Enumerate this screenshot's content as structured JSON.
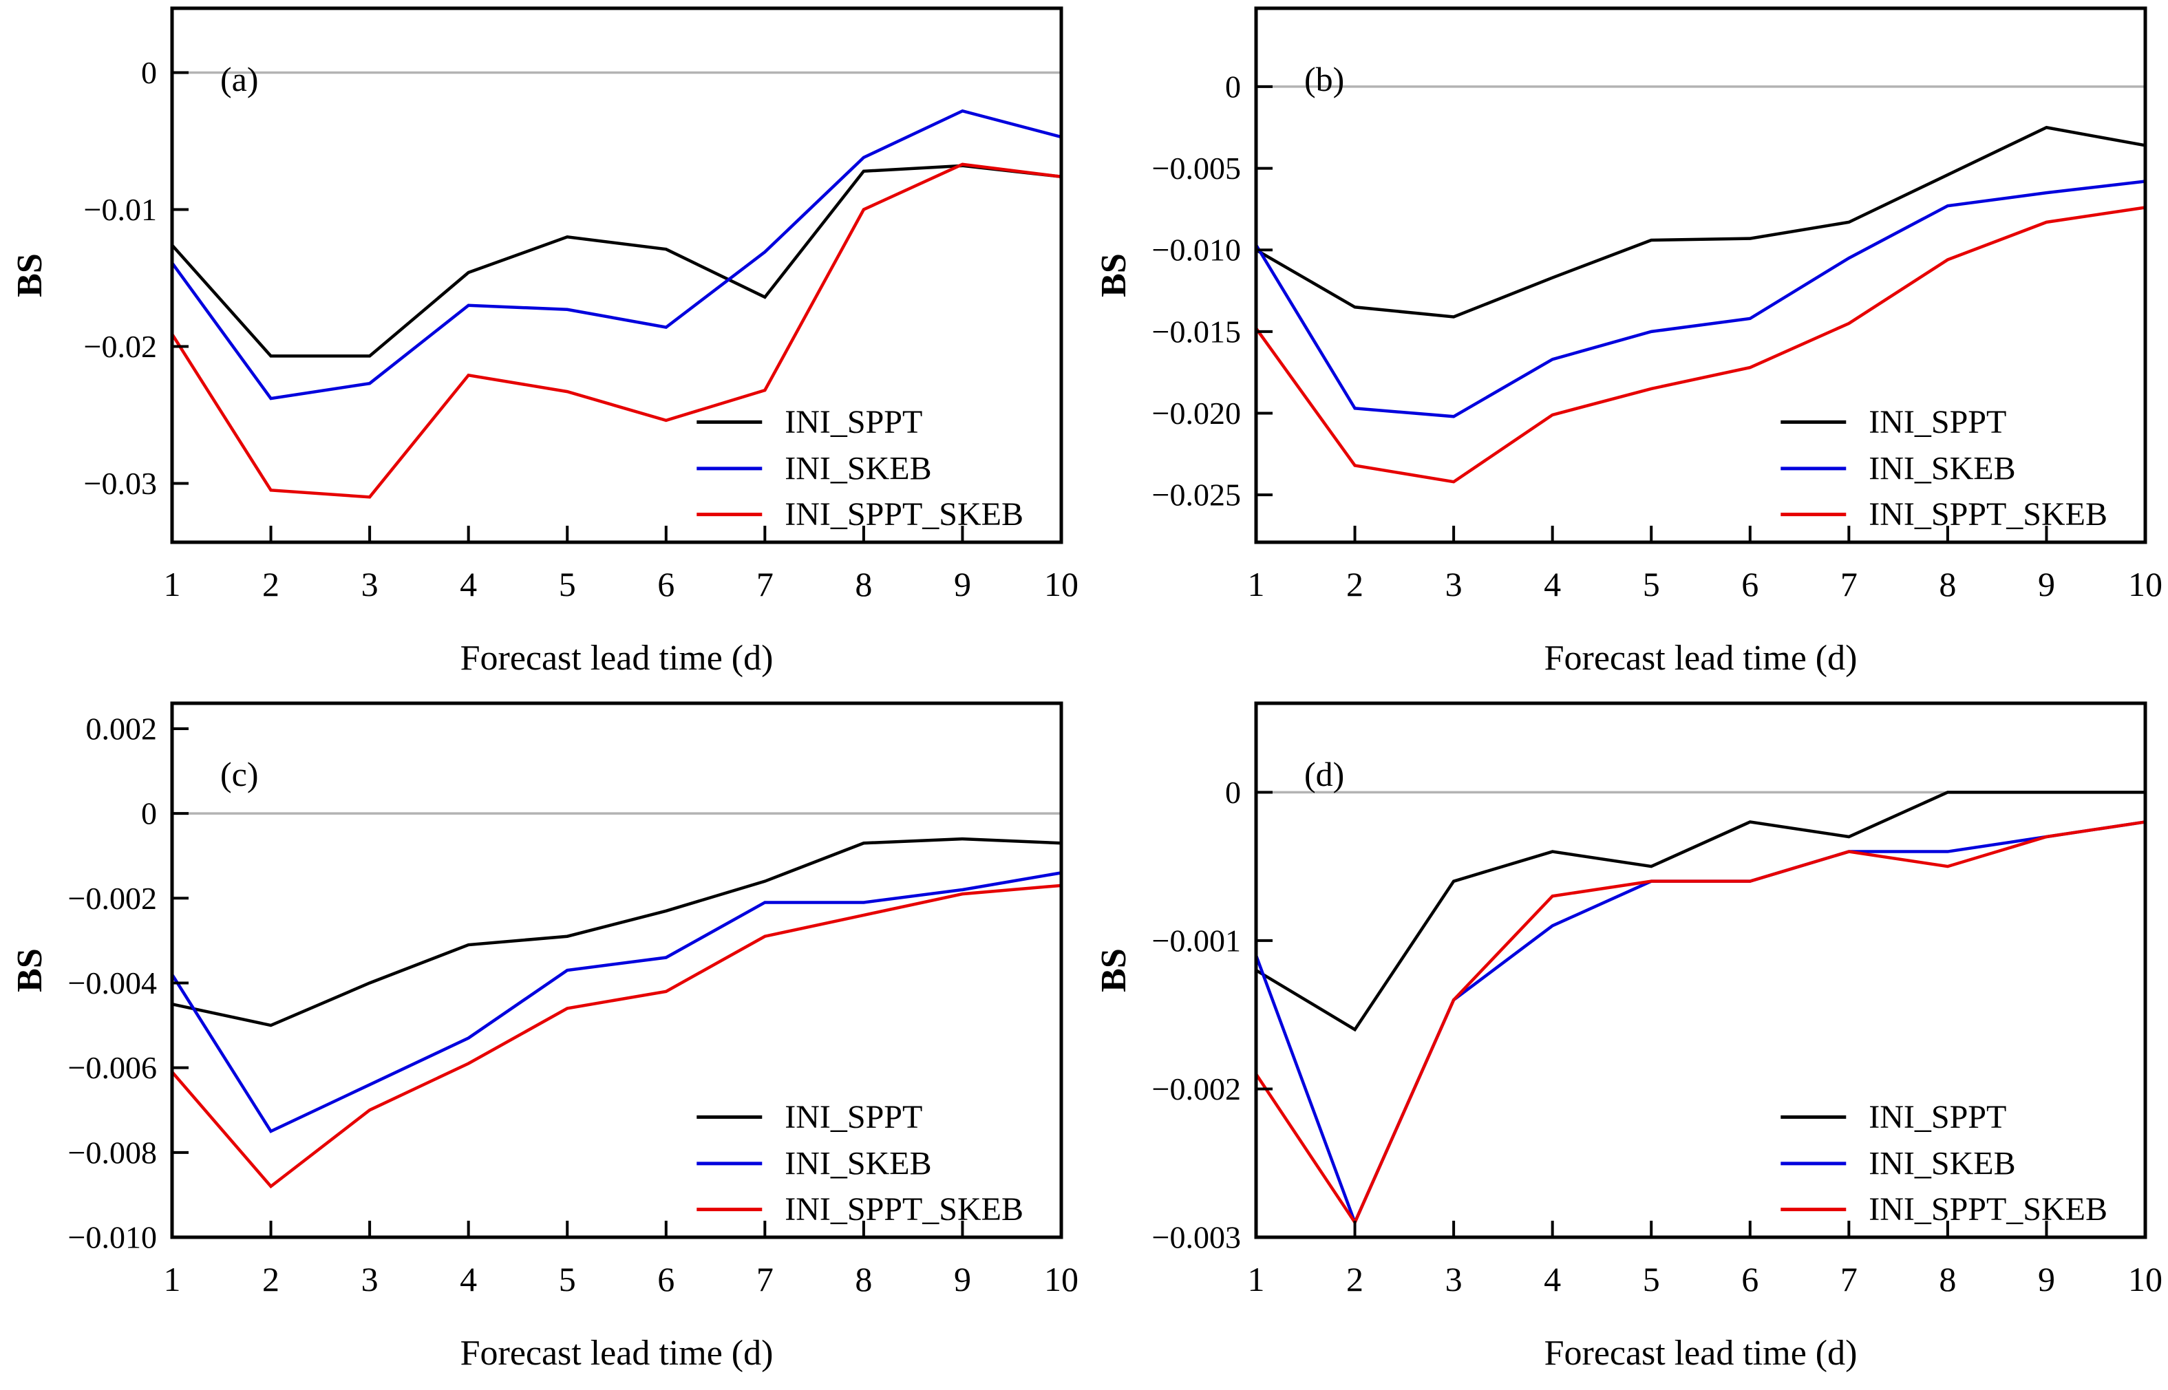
{
  "figure": {
    "ylabel": "BS",
    "xlabel": "Forecast lead time (d)",
    "legend_labels": [
      "INI_SPPT",
      "INI_SKEB",
      "INI_SPPT_SKEB"
    ],
    "series_colors": {
      "INI_SPPT": "#000000",
      "INI_SKEB": "#0000dd",
      "INI_SPPT_SKEB": "#e60000"
    },
    "zero_line_color": "#b3b3b3",
    "axis_color": "#000000",
    "background_color": "#ffffff"
  },
  "chart_data": [
    {
      "type": "line",
      "panel_label": "(a)",
      "title": "",
      "xlabel": "Forecast lead time (d)",
      "ylabel": "BS",
      "x": [
        1,
        2,
        3,
        4,
        5,
        6,
        7,
        8,
        9,
        10
      ],
      "x_tick_labels": [
        "1",
        "2",
        "3",
        "4",
        "5",
        "6",
        "7",
        "8",
        "9",
        "10"
      ],
      "ylim": [
        -0.0343,
        0.0047
      ],
      "grid": "zero-line-only",
      "legend_position": "lower right",
      "yticks": [
        {
          "v": 0,
          "label": "0"
        },
        {
          "v": -0.01,
          "label": "−0.01"
        },
        {
          "v": -0.02,
          "label": "−0.02"
        },
        {
          "v": -0.03,
          "label": "−0.03"
        }
      ],
      "series": [
        {
          "name": "INI_SPPT",
          "color": "#000000",
          "values": [
            -0.0126,
            -0.0207,
            -0.0207,
            -0.0146,
            -0.012,
            -0.0129,
            -0.0164,
            -0.0072,
            -0.0068,
            -0.0076
          ]
        },
        {
          "name": "INI_SKEB",
          "color": "#0000dd",
          "values": [
            -0.0139,
            -0.0238,
            -0.0227,
            -0.017,
            -0.0173,
            -0.0186,
            -0.0131,
            -0.0062,
            -0.0028,
            -0.0047
          ]
        },
        {
          "name": "INI_SPPT_SKEB",
          "color": "#e60000",
          "values": [
            -0.0191,
            -0.0305,
            -0.031,
            -0.0221,
            -0.0233,
            -0.0254,
            -0.0232,
            -0.01,
            -0.0067,
            -0.0076
          ]
        }
      ]
    },
    {
      "type": "line",
      "panel_label": "(b)",
      "title": "",
      "xlabel": "Forecast lead time (d)",
      "ylabel": "BS",
      "x": [
        1,
        2,
        3,
        4,
        5,
        6,
        7,
        8,
        9,
        10
      ],
      "x_tick_labels": [
        "1",
        "2",
        "3",
        "4",
        "5",
        "6",
        "7",
        "8",
        "9",
        "10"
      ],
      "ylim": [
        -0.0279,
        0.0048
      ],
      "grid": "zero-line-only",
      "legend_position": "lower right",
      "yticks": [
        {
          "v": 0,
          "label": "0"
        },
        {
          "v": -0.005,
          "label": "−0.005"
        },
        {
          "v": -0.01,
          "label": "−0.010"
        },
        {
          "v": -0.015,
          "label": "−0.015"
        },
        {
          "v": -0.02,
          "label": "−0.020"
        },
        {
          "v": -0.025,
          "label": "−0.025"
        }
      ],
      "series": [
        {
          "name": "INI_SPPT",
          "color": "#000000",
          "values": [
            -0.01,
            -0.0135,
            -0.0141,
            -0.0117,
            -0.0094,
            -0.0093,
            -0.0083,
            -0.0054,
            -0.0025,
            -0.0036
          ]
        },
        {
          "name": "INI_SKEB",
          "color": "#0000dd",
          "values": [
            -0.0097,
            -0.0197,
            -0.0202,
            -0.0167,
            -0.015,
            -0.0142,
            -0.0105,
            -0.0073,
            -0.0065,
            -0.0058
          ]
        },
        {
          "name": "INI_SPPT_SKEB",
          "color": "#e60000",
          "values": [
            -0.0148,
            -0.0232,
            -0.0242,
            -0.0201,
            -0.0185,
            -0.0172,
            -0.0145,
            -0.0106,
            -0.0083,
            -0.0074
          ]
        }
      ]
    },
    {
      "type": "line",
      "panel_label": "(c)",
      "title": "",
      "xlabel": "Forecast lead time (d)",
      "ylabel": "BS",
      "x": [
        1,
        2,
        3,
        4,
        5,
        6,
        7,
        8,
        9,
        10
      ],
      "x_tick_labels": [
        "1",
        "2",
        "3",
        "4",
        "5",
        "6",
        "7",
        "8",
        "9",
        "10"
      ],
      "ylim": [
        -0.01,
        0.0026
      ],
      "grid": "zero-line-only",
      "legend_position": "lower right",
      "yticks": [
        {
          "v": 0.002,
          "label": "0.002"
        },
        {
          "v": 0,
          "label": "0"
        },
        {
          "v": -0.002,
          "label": "−0.002"
        },
        {
          "v": -0.004,
          "label": "−0.004"
        },
        {
          "v": -0.006,
          "label": "−0.006"
        },
        {
          "v": -0.008,
          "label": "−0.008"
        },
        {
          "v": -0.01,
          "label": "−0.010"
        }
      ],
      "series": [
        {
          "name": "INI_SPPT",
          "color": "#000000",
          "values": [
            -0.0045,
            -0.005,
            -0.004,
            -0.0031,
            -0.0029,
            -0.0023,
            -0.0016,
            -0.0007,
            -0.0006,
            -0.0007
          ]
        },
        {
          "name": "INI_SKEB",
          "color": "#0000dd",
          "values": [
            -0.0038,
            -0.0075,
            -0.0064,
            -0.0053,
            -0.0037,
            -0.0034,
            -0.0021,
            -0.0021,
            -0.0018,
            -0.0014
          ]
        },
        {
          "name": "INI_SPPT_SKEB",
          "color": "#e60000",
          "values": [
            -0.0061,
            -0.0088,
            -0.007,
            -0.0059,
            -0.0046,
            -0.0042,
            -0.0029,
            -0.0024,
            -0.0019,
            -0.0017
          ]
        }
      ]
    },
    {
      "type": "line",
      "panel_label": "(d)",
      "title": "",
      "xlabel": "Forecast lead time (d)",
      "ylabel": "BS",
      "x": [
        1,
        2,
        3,
        4,
        5,
        6,
        7,
        8,
        9,
        10
      ],
      "x_tick_labels": [
        "1",
        "2",
        "3",
        "4",
        "5",
        "6",
        "7",
        "8",
        "9",
        "10"
      ],
      "ylim": [
        -0.003,
        0.0006
      ],
      "grid": "zero-line-only",
      "legend_position": "lower right",
      "yticks": [
        {
          "v": 0,
          "label": "0"
        },
        {
          "v": -0.001,
          "label": "−0.001"
        },
        {
          "v": -0.002,
          "label": "−0.002"
        },
        {
          "v": -0.003,
          "label": "−0.003"
        }
      ],
      "series": [
        {
          "name": "INI_SPPT",
          "color": "#000000",
          "values": [
            -0.0012,
            -0.0016,
            -0.0006,
            -0.0004,
            -0.0005,
            -0.0002,
            -0.0003,
            0.0,
            0.0,
            0.0
          ]
        },
        {
          "name": "INI_SKEB",
          "color": "#0000dd",
          "values": [
            -0.0011,
            -0.0029,
            -0.0014,
            -0.0009,
            -0.0006,
            -0.0006,
            -0.0004,
            -0.0004,
            -0.0003,
            -0.0002
          ]
        },
        {
          "name": "INI_SPPT_SKEB",
          "color": "#e60000",
          "values": [
            -0.0019,
            -0.0029,
            -0.0014,
            -0.0007,
            -0.0006,
            -0.0006,
            -0.0004,
            -0.0005,
            -0.0003,
            -0.0002
          ]
        }
      ]
    }
  ]
}
